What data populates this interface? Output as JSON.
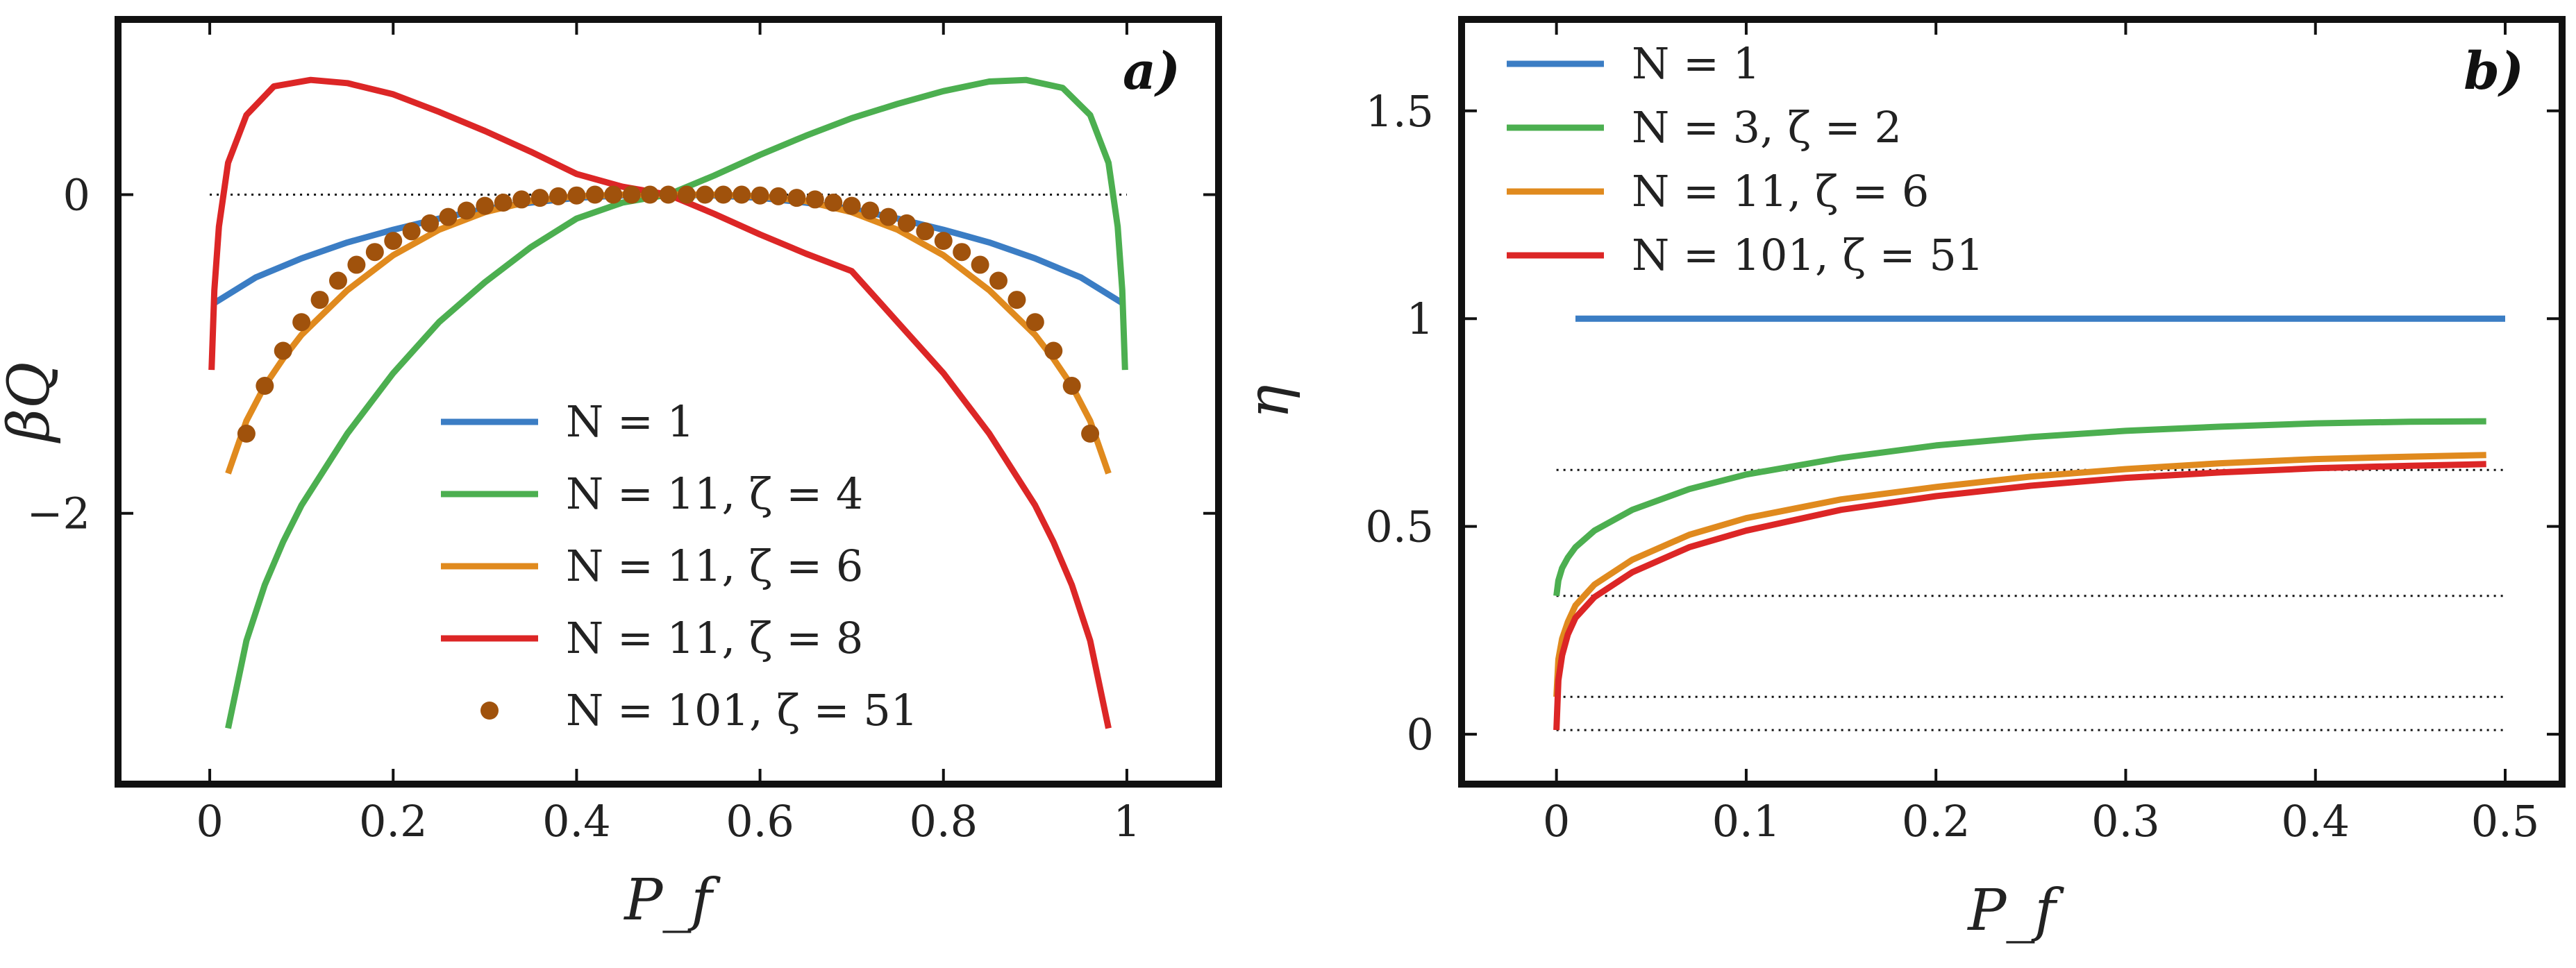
{
  "chart_data": [
    {
      "type": "line",
      "panel_label": "a)",
      "title": "",
      "xlabel": "P_f",
      "ylabel": "βQ",
      "xlim": [
        -0.1,
        1.1
      ],
      "ylim": [
        -3.7,
        1.1
      ],
      "xticks": [
        0,
        0.2,
        0.4,
        0.6,
        0.8,
        1
      ],
      "xtick_labels": [
        "0",
        "0.2",
        "0.4",
        "0.6",
        "0.8",
        "1"
      ],
      "yticks": [
        0,
        -2
      ],
      "ytick_labels": [
        "0",
        "−2"
      ],
      "reference_lines": [
        0
      ],
      "legend_position": "lower-center",
      "series": [
        {
          "name": "N = 1",
          "kind": "line",
          "color": "#3b7dc4",
          "x": [
            0.005,
            0.05,
            0.1,
            0.15,
            0.2,
            0.25,
            0.3,
            0.35,
            0.4,
            0.45,
            0.5,
            0.55,
            0.6,
            0.65,
            0.7,
            0.75,
            0.8,
            0.85,
            0.9,
            0.95,
            0.995
          ],
          "y": [
            -0.68,
            -0.52,
            -0.4,
            -0.3,
            -0.22,
            -0.15,
            -0.09,
            -0.05,
            -0.02,
            -0.005,
            0,
            -0.005,
            -0.02,
            -0.05,
            -0.09,
            -0.15,
            -0.22,
            -0.3,
            -0.4,
            -0.52,
            -0.68
          ]
        },
        {
          "name": "N = 11, ζ = 4",
          "kind": "line",
          "color": "#4caf50",
          "x": [
            0.02,
            0.04,
            0.06,
            0.08,
            0.1,
            0.15,
            0.2,
            0.25,
            0.3,
            0.35,
            0.4,
            0.45,
            0.5,
            0.55,
            0.6,
            0.65,
            0.7,
            0.75,
            0.8,
            0.85,
            0.89,
            0.93,
            0.96,
            0.98,
            0.99,
            0.995,
            0.998
          ],
          "y": [
            -3.35,
            -2.8,
            -2.45,
            -2.18,
            -1.95,
            -1.5,
            -1.12,
            -0.8,
            -0.55,
            -0.33,
            -0.15,
            -0.05,
            0.0,
            0.12,
            0.25,
            0.37,
            0.48,
            0.57,
            0.65,
            0.71,
            0.72,
            0.67,
            0.5,
            0.2,
            -0.2,
            -0.6,
            -1.1
          ]
        },
        {
          "name": "N = 11, ζ = 6",
          "kind": "line",
          "color": "#e08a1e",
          "x": [
            0.02,
            0.04,
            0.06,
            0.08,
            0.1,
            0.15,
            0.2,
            0.25,
            0.3,
            0.35,
            0.4,
            0.45,
            0.5,
            0.55,
            0.6,
            0.65,
            0.7,
            0.75,
            0.8,
            0.85,
            0.9,
            0.92,
            0.94,
            0.96,
            0.98
          ],
          "y": [
            -1.75,
            -1.42,
            -1.2,
            -1.03,
            -0.88,
            -0.6,
            -0.38,
            -0.22,
            -0.11,
            -0.04,
            -0.01,
            0,
            0,
            0,
            -0.01,
            -0.04,
            -0.11,
            -0.22,
            -0.38,
            -0.6,
            -0.88,
            -1.03,
            -1.2,
            -1.42,
            -1.75
          ]
        },
        {
          "name": "N = 11, ζ = 8",
          "kind": "line",
          "color": "#dc2626",
          "x": [
            0.002,
            0.005,
            0.01,
            0.02,
            0.04,
            0.07,
            0.11,
            0.15,
            0.2,
            0.25,
            0.3,
            0.35,
            0.4,
            0.45,
            0.5,
            0.55,
            0.6,
            0.65,
            0.7,
            0.75,
            0.8,
            0.85,
            0.9,
            0.92,
            0.94,
            0.96,
            0.98
          ],
          "y": [
            -1.1,
            -0.6,
            -0.2,
            0.2,
            0.5,
            0.68,
            0.72,
            0.7,
            0.63,
            0.52,
            0.4,
            0.27,
            0.13,
            0.05,
            0.0,
            -0.12,
            -0.25,
            -0.37,
            -0.48,
            -0.8,
            -1.12,
            -1.5,
            -1.95,
            -2.18,
            -2.45,
            -2.8,
            -3.35
          ]
        },
        {
          "name": "N = 101, ζ = 51",
          "kind": "scatter",
          "color": "#a0520c",
          "x": [
            0.04,
            0.06,
            0.08,
            0.1,
            0.12,
            0.14,
            0.16,
            0.18,
            0.2,
            0.22,
            0.24,
            0.26,
            0.28,
            0.3,
            0.32,
            0.34,
            0.36,
            0.38,
            0.4,
            0.42,
            0.44,
            0.46,
            0.48,
            0.5,
            0.52,
            0.54,
            0.56,
            0.58,
            0.6,
            0.62,
            0.64,
            0.66,
            0.68,
            0.7,
            0.72,
            0.74,
            0.76,
            0.78,
            0.8,
            0.82,
            0.84,
            0.86,
            0.88,
            0.9,
            0.92,
            0.94,
            0.96
          ],
          "y": [
            -1.5,
            -1.2,
            -0.98,
            -0.8,
            -0.66,
            -0.54,
            -0.44,
            -0.36,
            -0.29,
            -0.23,
            -0.18,
            -0.14,
            -0.1,
            -0.07,
            -0.05,
            -0.03,
            -0.02,
            -0.01,
            -0.005,
            0,
            0,
            0,
            0,
            0,
            0,
            0,
            0,
            0,
            -0.005,
            -0.01,
            -0.02,
            -0.03,
            -0.05,
            -0.07,
            -0.1,
            -0.14,
            -0.18,
            -0.23,
            -0.29,
            -0.36,
            -0.44,
            -0.54,
            -0.66,
            -0.8,
            -0.98,
            -1.2,
            -1.5
          ]
        }
      ]
    },
    {
      "type": "line",
      "panel_label": "b)",
      "title": "",
      "xlabel": "P_f",
      "ylabel": "η",
      "xlim": [
        -0.05,
        0.53
      ],
      "ylim": [
        -0.12,
        1.72
      ],
      "xticks": [
        0,
        0.1,
        0.2,
        0.3,
        0.4,
        0.5
      ],
      "xtick_labels": [
        "0",
        "0.1",
        "0.2",
        "0.3",
        "0.4",
        "0.5"
      ],
      "yticks": [
        0,
        0.5,
        1,
        1.5
      ],
      "ytick_labels": [
        "0",
        "0.5",
        "1",
        "1.5"
      ],
      "reference_lines": [
        0.01,
        0.09,
        0.333,
        0.636
      ],
      "legend_position": "top-left",
      "series": [
        {
          "name": "N = 1",
          "kind": "line",
          "color": "#3b7dc4",
          "x": [
            0.01,
            0.5
          ],
          "y": [
            1,
            1
          ]
        },
        {
          "name": "N = 3, ζ = 2",
          "kind": "line",
          "color": "#4caf50",
          "x": [
            0.0,
            0.001,
            0.003,
            0.006,
            0.01,
            0.02,
            0.04,
            0.07,
            0.1,
            0.15,
            0.2,
            0.25,
            0.3,
            0.35,
            0.4,
            0.45,
            0.49
          ],
          "y": [
            0.333,
            0.37,
            0.4,
            0.425,
            0.45,
            0.49,
            0.54,
            0.59,
            0.625,
            0.665,
            0.695,
            0.715,
            0.73,
            0.74,
            0.748,
            0.752,
            0.753
          ]
        },
        {
          "name": "N = 11, ζ = 6",
          "kind": "line",
          "color": "#e08a1e",
          "x": [
            0.0,
            0.001,
            0.003,
            0.006,
            0.01,
            0.02,
            0.04,
            0.07,
            0.1,
            0.15,
            0.2,
            0.25,
            0.3,
            0.35,
            0.4,
            0.45,
            0.49
          ],
          "y": [
            0.09,
            0.18,
            0.23,
            0.27,
            0.31,
            0.36,
            0.42,
            0.48,
            0.52,
            0.565,
            0.595,
            0.62,
            0.638,
            0.652,
            0.662,
            0.668,
            0.672
          ]
        },
        {
          "name": "N = 101, ζ = 51",
          "kind": "line",
          "color": "#dc2626",
          "x": [
            0.0,
            0.001,
            0.003,
            0.006,
            0.01,
            0.02,
            0.04,
            0.07,
            0.1,
            0.15,
            0.2,
            0.25,
            0.3,
            0.35,
            0.4,
            0.45,
            0.49
          ],
          "y": [
            0.01,
            0.13,
            0.19,
            0.24,
            0.28,
            0.33,
            0.39,
            0.45,
            0.49,
            0.54,
            0.573,
            0.598,
            0.617,
            0.63,
            0.64,
            0.646,
            0.65
          ]
        }
      ]
    }
  ]
}
